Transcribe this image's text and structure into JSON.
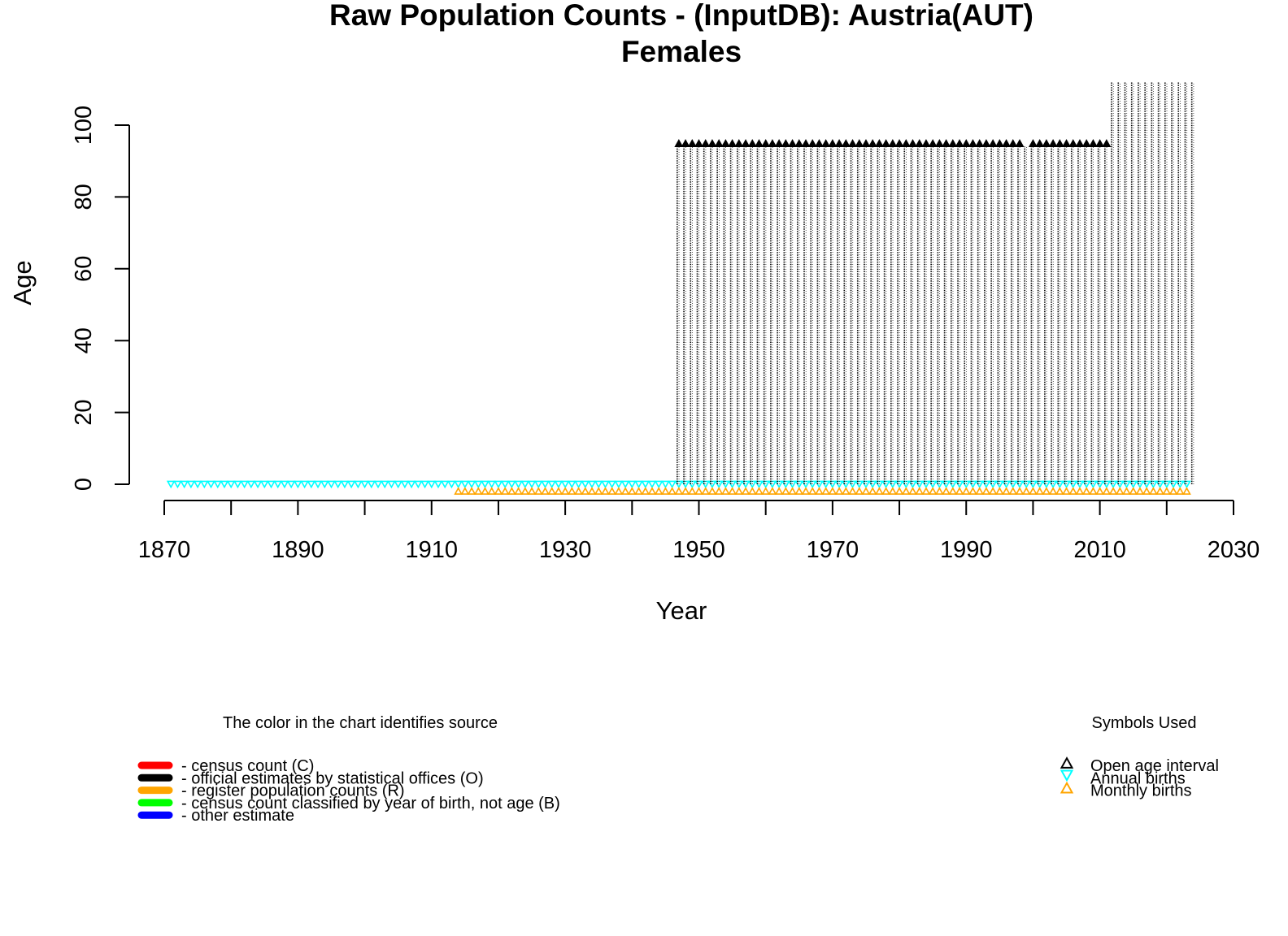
{
  "chart_data": {
    "type": "scatter",
    "title": "Raw Population Counts - (InputDB): Austria(AUT)",
    "subtitle": "Females",
    "xlabel": "Year",
    "ylabel": "Age",
    "xlim": [
      1870,
      2030
    ],
    "ylim": [
      0,
      100
    ],
    "x_ticks": [
      "1870",
      "1890",
      "1910",
      "1930",
      "1950",
      "1970",
      "1990",
      "2010",
      "2030"
    ],
    "y_ticks": [
      "0",
      "20",
      "40",
      "60",
      "80",
      "100"
    ],
    "grid": false,
    "series": [
      {
        "name": "Annual births",
        "color": "#00ffff",
        "marker": "triangle-down",
        "years_from": 1871,
        "years_to": 2023,
        "age": 0
      },
      {
        "name": "Monthly births",
        "color": "#ffa500",
        "marker": "triangle-up",
        "years_from": 1914,
        "years_to": 2023,
        "age": -1
      },
      {
        "name": "Open age interval",
        "color": "#000000",
        "marker": "triangle-up",
        "years": [
          1947,
          1948,
          1949,
          1950,
          1951,
          1952,
          1953,
          1954,
          1955,
          1956,
          1957,
          1958,
          1959,
          1960,
          1961,
          1962,
          1963,
          1964,
          1965,
          1966,
          1967,
          1968,
          1969,
          1970,
          1971,
          1972,
          1973,
          1974,
          1975,
          1976,
          1977,
          1978,
          1979,
          1980,
          1981,
          1982,
          1983,
          1984,
          1985,
          1986,
          1987,
          1988,
          1989,
          1990,
          1991,
          1992,
          1993,
          1994,
          1995,
          1996,
          1997,
          1998,
          2000,
          2001,
          2002,
          2003,
          2004,
          2005,
          2006,
          2007,
          2008,
          2009,
          2010,
          2011
        ],
        "age": 95
      },
      {
        "name": "official estimates by statistical offices (O)",
        "color": "#000000",
        "marker": "age-columns",
        "segments": [
          {
            "years_from": 1947,
            "years_to": 2011,
            "age_max": 94
          },
          {
            "years_from": 2012,
            "years_to": 2024,
            "age_max": 112
          }
        ]
      }
    ],
    "legend_source": {
      "title": "The color in the chart identifies source",
      "placement": "bottom-left",
      "items": [
        {
          "label": "- census count (C)",
          "color": "#ff0000"
        },
        {
          "label": "- official estimates by statistical offices (O)",
          "color": "#000000"
        },
        {
          "label": "- register population counts (R)",
          "color": "#ffa500"
        },
        {
          "label": "- census count classified by year of birth, not age (B)",
          "color": "#00ff00"
        },
        {
          "label": "- other estimate",
          "color": "#0000ff"
        }
      ]
    },
    "legend_symbols": {
      "title": "Symbols Used",
      "placement": "bottom-right",
      "items": [
        {
          "label": "Open age interval",
          "color": "#000000",
          "marker": "triangle-up"
        },
        {
          "label": "Annual births",
          "color": "#00ffff",
          "marker": "triangle-down"
        },
        {
          "label": "Monthly births",
          "color": "#ffa500",
          "marker": "triangle-up"
        }
      ]
    }
  }
}
